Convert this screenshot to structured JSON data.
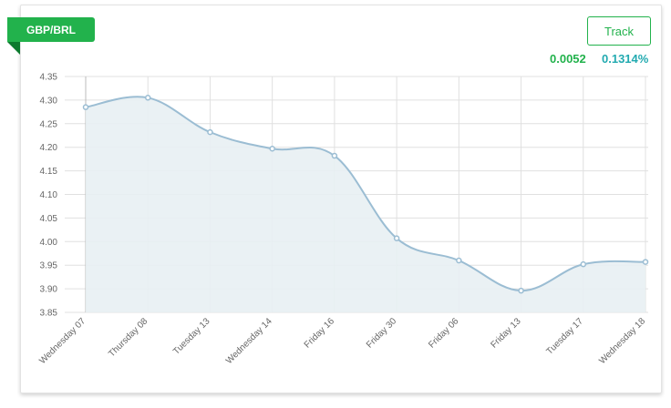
{
  "header": {
    "pair": "GBP/BRL",
    "track_label": "Track",
    "change_abs": "0.0052",
    "change_pct": "0.1314%"
  },
  "colors": {
    "accent_green": "#22b24c",
    "pct_teal": "#22aab0",
    "line": "#9bbdd3",
    "fill": "#e8eff3",
    "grid": "#e0e0e0"
  },
  "chart_data": {
    "type": "area",
    "title": "",
    "xlabel": "",
    "ylabel": "",
    "categories": [
      "Wednesday 07",
      "Thursday 08",
      "Tuesday 13",
      "Wednesday 14",
      "Friday 16",
      "Friday 30",
      "Friday 06",
      "Friday 13",
      "Tuesday 17",
      "Wednesday 18"
    ],
    "values": [
      4.285,
      4.305,
      4.232,
      4.197,
      4.182,
      4.007,
      3.96,
      3.896,
      3.952,
      3.957
    ],
    "ylim": [
      3.85,
      4.35
    ],
    "yticks": [
      3.85,
      3.9,
      3.95,
      4.0,
      4.05,
      4.1,
      4.15,
      4.2,
      4.25,
      4.3,
      4.35
    ],
    "grid": true,
    "legend": "none"
  }
}
